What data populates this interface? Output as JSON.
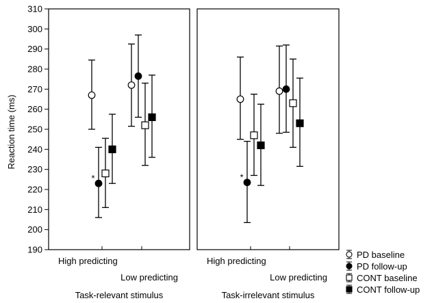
{
  "chart_data": {
    "type": "scatter",
    "ylabel": "Reaction time (ms)",
    "ylim": [
      190,
      310
    ],
    "yticks": [
      190,
      200,
      210,
      220,
      230,
      240,
      250,
      260,
      270,
      280,
      290,
      300,
      310
    ],
    "group_labels": [
      "High predicting",
      "Low predicting"
    ],
    "legend": {
      "placement": "bottom-right",
      "entries": [
        "PD baseline",
        "PD follow-up",
        "CONT baseline",
        "CONT follow-up"
      ]
    },
    "series_styles": [
      {
        "name": "PD baseline",
        "marker": "circle",
        "fill": "#ffffff"
      },
      {
        "name": "PD follow-up",
        "marker": "circle",
        "fill": "#000000"
      },
      {
        "name": "CONT baseline",
        "marker": "square",
        "fill": "#ffffff"
      },
      {
        "name": "CONT follow-up",
        "marker": "square",
        "fill": "#000000"
      }
    ],
    "panels": [
      {
        "title": "Task-relevant stimulus",
        "groups": [
          {
            "label": "High predicting",
            "points": [
              {
                "series": "PD baseline",
                "mean": 267,
                "low": 250,
                "high": 284.5
              },
              {
                "series": "PD follow-up",
                "mean": 223,
                "low": 206,
                "high": 241,
                "annotation": "*"
              },
              {
                "series": "CONT baseline",
                "mean": 228,
                "low": 211,
                "high": 245.5
              },
              {
                "series": "CONT follow-up",
                "mean": 240,
                "low": 223,
                "high": 257.5
              }
            ]
          },
          {
            "label": "Low predicting",
            "points": [
              {
                "series": "PD baseline",
                "mean": 272,
                "low": 251.5,
                "high": 292.5
              },
              {
                "series": "PD follow-up",
                "mean": 276.5,
                "low": 256,
                "high": 297
              },
              {
                "series": "CONT baseline",
                "mean": 252,
                "low": 232,
                "high": 273
              },
              {
                "series": "CONT follow-up",
                "mean": 256,
                "low": 236,
                "high": 277
              }
            ]
          }
        ]
      },
      {
        "title": "Task-irrelevant stimulus",
        "groups": [
          {
            "label": "High predicting",
            "points": [
              {
                "series": "PD baseline",
                "mean": 265,
                "low": 245,
                "high": 286
              },
              {
                "series": "PD follow-up",
                "mean": 223.5,
                "low": 203.5,
                "high": 244,
                "annotation": "*"
              },
              {
                "series": "CONT baseline",
                "mean": 247,
                "low": 227,
                "high": 267.5
              },
              {
                "series": "CONT follow-up",
                "mean": 242,
                "low": 222,
                "high": 262.5
              }
            ]
          },
          {
            "label": "Low predicting",
            "points": [
              {
                "series": "PD baseline",
                "mean": 269,
                "low": 248,
                "high": 291.5
              },
              {
                "series": "PD follow-up",
                "mean": 270,
                "low": 248.5,
                "high": 292
              },
              {
                "series": "CONT baseline",
                "mean": 263,
                "low": 241,
                "high": 285
              },
              {
                "series": "CONT follow-up",
                "mean": 253,
                "low": 231.5,
                "high": 275.5
              }
            ]
          }
        ]
      }
    ]
  }
}
